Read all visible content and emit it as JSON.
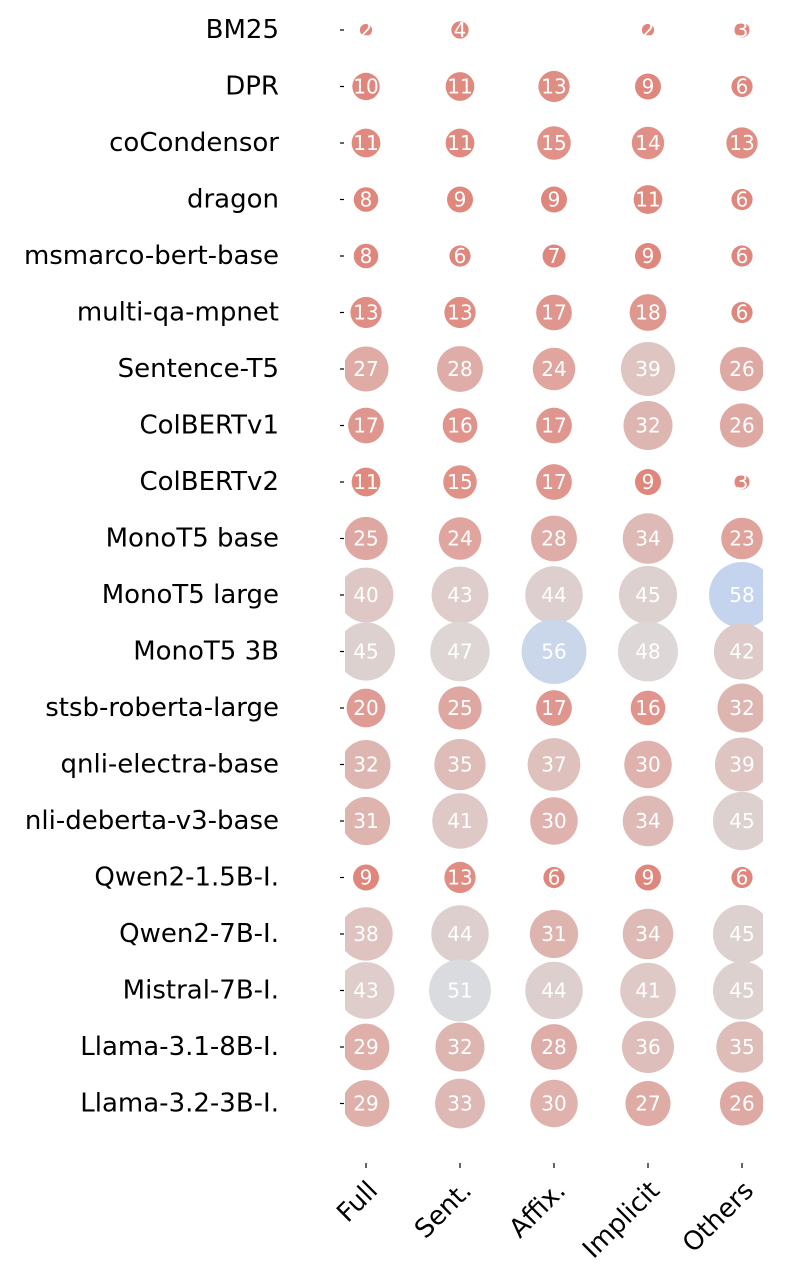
{
  "chart_data": {
    "type": "bubble-matrix",
    "rows": [
      "BM25",
      "DPR",
      "coCondensor",
      "dragon",
      "msmarco-bert-base",
      "multi-qa-mpnet",
      "Sentence-T5",
      "ColBERTv1",
      "ColBERTv2",
      "MonoT5 base",
      "MonoT5 large",
      "MonoT5 3B",
      "stsb-roberta-large",
      "qnli-electra-base",
      "nli-deberta-v3-base",
      "Qwen2-1.5B-I.",
      "Qwen2-7B-I.",
      "Mistral-7B-I.",
      "Llama-3.1-8B-I.",
      "Llama-3.2-3B-I."
    ],
    "columns": [
      "Full",
      "Sent.",
      "Affix.",
      "Implicit",
      "Others"
    ],
    "values": [
      [
        2,
        4,
        null,
        2,
        3
      ],
      [
        10,
        11,
        13,
        9,
        6
      ],
      [
        11,
        11,
        15,
        14,
        13
      ],
      [
        8,
        9,
        9,
        11,
        6
      ],
      [
        8,
        6,
        7,
        9,
        6
      ],
      [
        13,
        13,
        17,
        18,
        6
      ],
      [
        27,
        28,
        24,
        39,
        26
      ],
      [
        17,
        16,
        17,
        32,
        26
      ],
      [
        11,
        15,
        17,
        9,
        3
      ],
      [
        25,
        24,
        28,
        34,
        23
      ],
      [
        40,
        43,
        44,
        45,
        58
      ],
      [
        45,
        47,
        56,
        48,
        42
      ],
      [
        20,
        25,
        17,
        16,
        32
      ],
      [
        32,
        35,
        37,
        30,
        39
      ],
      [
        31,
        41,
        30,
        34,
        45
      ],
      [
        9,
        13,
        6,
        9,
        6
      ],
      [
        38,
        44,
        31,
        34,
        45
      ],
      [
        43,
        51,
        44,
        41,
        45
      ],
      [
        29,
        32,
        28,
        36,
        35
      ],
      [
        29,
        33,
        30,
        27,
        26
      ]
    ],
    "color_scale": {
      "low": "#e0877d",
      "mid": "#dddcdc",
      "high": "#c4d4ee",
      "low_value": 10,
      "mid_value": 50,
      "high_value": 58
    },
    "grid": false,
    "legend": "none"
  }
}
